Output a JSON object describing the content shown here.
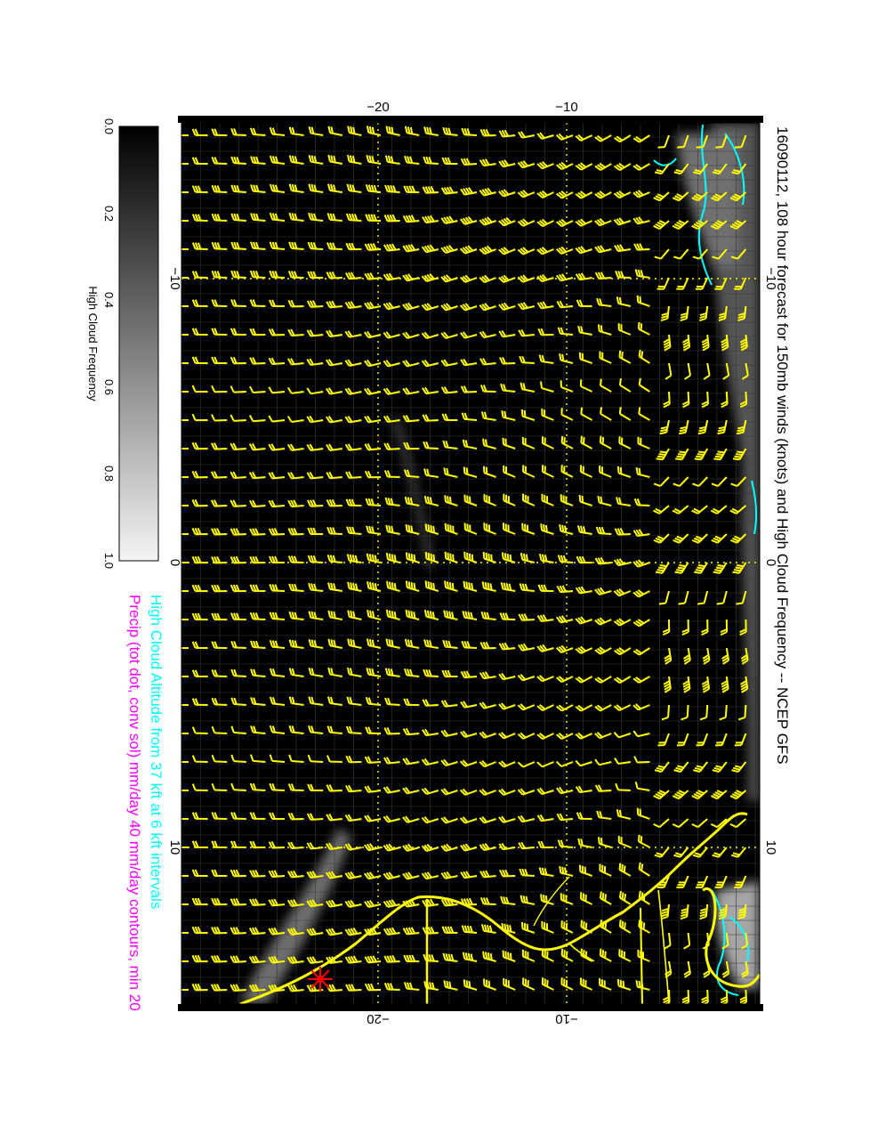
{
  "title": "16090112, 108 hour forecast for 150mb winds (knots) and High Cloud Frequency -- NCEP GFS",
  "subtitle_cyan": "High Cloud Altitude from 37 kft at 6 kft intervals",
  "subtitle_magenta": "Precip (tot dot, conv sol) mm/day 40 mm/day contours, min 20",
  "colorbar": {
    "label": "High Cloud Frequency",
    "ticks": [
      "0.0",
      "0.2",
      "0.4",
      "0.6",
      "0.8",
      "1.0"
    ]
  },
  "axes": {
    "lon_ticks_top": [
      "−10",
      "0",
      "10"
    ],
    "lon_ticks_bottom": [
      "−10",
      "0",
      "10"
    ],
    "lat_ticks_right": [
      "−20",
      "−10"
    ],
    "lat_ticks_left": [
      "−20",
      "−10"
    ]
  },
  "colors": {
    "background": "#000000",
    "wind_barbs": "#ffff00",
    "coastline": "#ffff00",
    "cloud_altitude_contours": "#00ffff",
    "precip_text": "#ff00ff",
    "cloud_text": "#00ffff",
    "storm_marker": "#ff0000"
  },
  "icons": {
    "storm_marker": "red-star-icon",
    "wind": "wind-barb-icon"
  }
}
